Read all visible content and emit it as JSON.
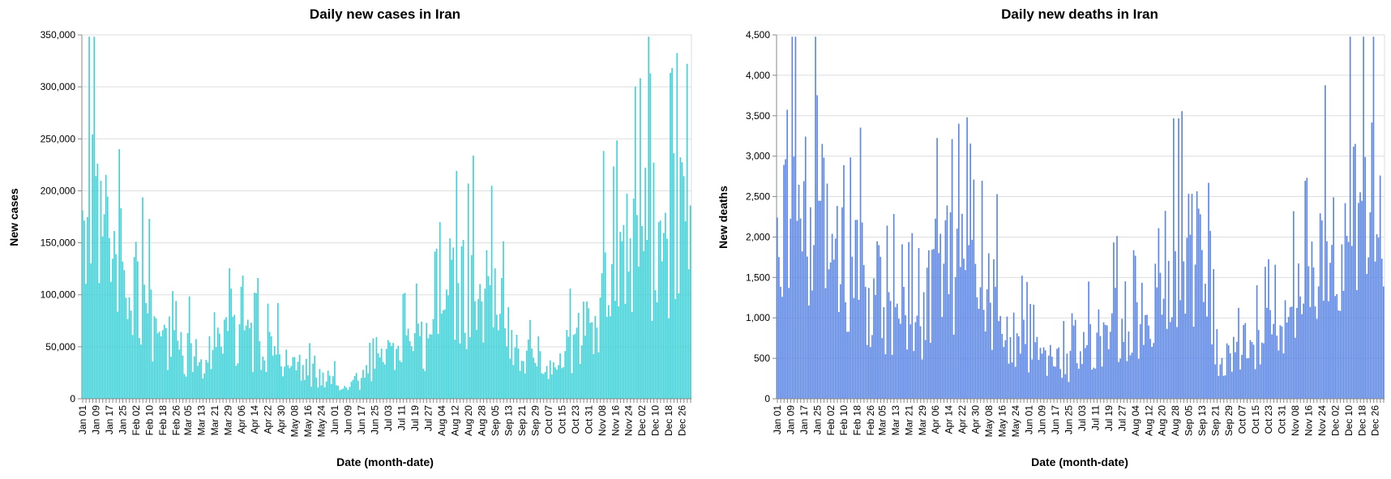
{
  "charts": [
    {
      "title": "Daily new cases in Iran",
      "xlabel": "Date (month-date)",
      "ylabel": "New cases",
      "color": "#3ED2D8",
      "y_ticks": [
        "0",
        "50,000",
        "100,000",
        "150,000",
        "200,000",
        "250,000",
        "300,000",
        "350,000"
      ],
      "x_ticks": [
        "Jan 01",
        "Jan 09",
        "Jan 17",
        "Jan 25",
        "Feb 02",
        "Feb 10",
        "Feb 18",
        "Feb 26",
        "Mar 05",
        "Mar 13",
        "Mar 21",
        "Mar 29",
        "Apr 06",
        "Apr 14",
        "Apr 22",
        "Apr 30",
        "May 08",
        "May 16",
        "May 24",
        "Jun 01",
        "Jun 09",
        "Jun 17",
        "Jun 25",
        "Jul 03",
        "Jul 11",
        "Jul 19",
        "Jul 27",
        "Aug 04",
        "Aug 12",
        "Aug 20",
        "Aug 28",
        "Sep 05",
        "Sep 13",
        "Sep 21",
        "Sep 29",
        "Oct 07",
        "Oct 15",
        "Oct 23",
        "Oct 31",
        "Nov 08",
        "Nov 16",
        "Nov 24",
        "Dec 02",
        "Dec 10",
        "Dec 18",
        "Dec 26"
      ]
    },
    {
      "title": "Daily new deaths in Iran",
      "xlabel": "Date (month-date)",
      "ylabel": "New deaths",
      "color": "#5B86E5",
      "y_ticks": [
        "0",
        "500",
        "1,000",
        "1,500",
        "2,000",
        "2,500",
        "3,000",
        "3,500",
        "4,000",
        "4,500"
      ],
      "x_ticks": [
        "Jan 01",
        "Jan 09",
        "Jan 17",
        "Jan 25",
        "Feb 02",
        "Feb 10",
        "Feb 18",
        "Feb 26",
        "Mar 05",
        "Mar 13",
        "Mar 21",
        "Mar 29",
        "Apr 06",
        "Apr 14",
        "Apr 22",
        "Apr 30",
        "May 08",
        "May 16",
        "May 24",
        "Jun 01",
        "Jun 09",
        "Jun 17",
        "Jun 25",
        "Jul 03",
        "Jul 11",
        "Jul 19",
        "Jul 27",
        "Aug 04",
        "Aug 12",
        "Aug 20",
        "Aug 28",
        "Sep 05",
        "Sep 13",
        "Sep 21",
        "Sep 29",
        "Oct 07",
        "Oct 15",
        "Oct 23",
        "Oct 31",
        "Nov 08",
        "Nov 16",
        "Nov 24",
        "Dec 02",
        "Dec 10",
        "Dec 18",
        "Dec 26"
      ]
    }
  ],
  "chart_data": [
    {
      "type": "bar",
      "title": "Daily new cases in Iran",
      "xlabel": "Date (month-date)",
      "ylabel": "New cases",
      "ylim": [
        0,
        350000
      ],
      "grid": true,
      "x_start": "Jan 01",
      "x_interval_days": 8,
      "anchors": [
        [
          "Jan 01",
          165000
        ],
        [
          "Jan 05",
          250000
        ],
        [
          "Jan 09",
          290000
        ],
        [
          "Jan 13",
          230000
        ],
        [
          "Jan 17",
          230000
        ],
        [
          "Jan 21",
          160000
        ],
        [
          "Jan 25",
          180000
        ],
        [
          "Jan 29",
          150000
        ],
        [
          "Feb 02",
          140000
        ],
        [
          "Feb 06",
          115000
        ],
        [
          "Feb 10",
          100000
        ],
        [
          "Feb 14",
          80000
        ],
        [
          "Feb 18",
          65000
        ],
        [
          "Feb 22",
          70000
        ],
        [
          "Feb 26",
          60000
        ],
        [
          "Mar 01",
          62000
        ],
        [
          "Mar 05",
          60000
        ],
        [
          "Mar 13",
          55000
        ],
        [
          "Mar 21",
          57000
        ],
        [
          "Mar 29",
          72000
        ],
        [
          "Apr 06",
          75000
        ],
        [
          "Apr 14",
          72000
        ],
        [
          "Apr 22",
          62000
        ],
        [
          "Apr 30",
          52000
        ],
        [
          "May 08",
          40000
        ],
        [
          "May 16",
          33000
        ],
        [
          "May 24",
          26000
        ],
        [
          "Jun 01",
          22000
        ],
        [
          "Jun 09",
          20000
        ],
        [
          "Jun 17",
          25000
        ],
        [
          "Jun 25",
          38000
        ],
        [
          "Jul 03",
          50000
        ],
        [
          "Jul 11",
          58000
        ],
        [
          "Jul 19",
          65000
        ],
        [
          "Jul 27",
          68000
        ],
        [
          "Aug 04",
          120000
        ],
        [
          "Aug 12",
          150000
        ],
        [
          "Aug 20",
          130000
        ],
        [
          "Aug 28",
          140000
        ],
        [
          "Sep 05",
          120000
        ],
        [
          "Sep 13",
          100000
        ],
        [
          "Sep 21",
          65000
        ],
        [
          "Sep 29",
          40000
        ],
        [
          "Oct 07",
          45000
        ],
        [
          "Oct 15",
          55000
        ],
        [
          "Oct 23",
          70000
        ],
        [
          "Oct 31",
          100000
        ],
        [
          "Nov 08",
          135000
        ],
        [
          "Nov 16",
          160000
        ],
        [
          "Nov 24",
          190000
        ],
        [
          "Dec 02",
          210000
        ],
        [
          "Dec 10",
          215000
        ],
        [
          "Dec 18",
          220000
        ],
        [
          "Dec 26",
          205000
        ],
        [
          "Dec 31",
          215000
        ]
      ]
    },
    {
      "type": "bar",
      "title": "Daily new deaths in Iran",
      "xlabel": "Date (month-date)",
      "ylabel": "New deaths",
      "ylim": [
        0,
        4500
      ],
      "grid": true,
      "x_start": "Jan 01",
      "x_interval_days": 8,
      "anchors": [
        [
          "Jan 01",
          2000
        ],
        [
          "Jan 05",
          3300
        ],
        [
          "Jan 09",
          3900
        ],
        [
          "Jan 13",
          3600
        ],
        [
          "Jan 17",
          3400
        ],
        [
          "Jan 21",
          3000
        ],
        [
          "Jan 25",
          3700
        ],
        [
          "Jan 29",
          3000
        ],
        [
          "Feb 02",
          3200
        ],
        [
          "Feb 06",
          2500
        ],
        [
          "Feb 10",
          2700
        ],
        [
          "Feb 14",
          1800
        ],
        [
          "Feb 18",
          2200
        ],
        [
          "Feb 22",
          2000
        ],
        [
          "Feb 26",
          1700
        ],
        [
          "Mar 01",
          1900
        ],
        [
          "Mar 05",
          1600
        ],
        [
          "Mar 13",
          1300
        ],
        [
          "Mar 21",
          1200
        ],
        [
          "Mar 29",
          1300
        ],
        [
          "Apr 06",
          2100
        ],
        [
          "Apr 14",
          2200
        ],
        [
          "Apr 22",
          2100
        ],
        [
          "Apr 30",
          1900
        ],
        [
          "May 08",
          1600
        ],
        [
          "May 16",
          1400
        ],
        [
          "May 24",
          1000
        ],
        [
          "Jun 01",
          850
        ],
        [
          "Jun 09",
          700
        ],
        [
          "Jun 17",
          650
        ],
        [
          "Jun 25",
          550
        ],
        [
          "Jul 03",
          800
        ],
        [
          "Jul 11",
          1000
        ],
        [
          "Jul 19",
          1150
        ],
        [
          "Jul 27",
          1300
        ],
        [
          "Aug 04",
          1200
        ],
        [
          "Aug 12",
          1500
        ],
        [
          "Aug 20",
          2000
        ],
        [
          "Aug 28",
          2200
        ],
        [
          "Sep 05",
          2400
        ],
        [
          "Sep 13",
          2500
        ],
        [
          "Sep 21",
          800
        ],
        [
          "Sep 29",
          650
        ],
        [
          "Oct 07",
          800
        ],
        [
          "Oct 15",
          900
        ],
        [
          "Oct 23",
          1000
        ],
        [
          "Oct 31",
          1100
        ],
        [
          "Nov 08",
          1400
        ],
        [
          "Nov 16",
          1700
        ],
        [
          "Nov 24",
          2200
        ],
        [
          "Dec 02",
          2700
        ],
        [
          "Dec 10",
          3100
        ],
        [
          "Dec 18",
          3300
        ],
        [
          "Dec 26",
          3200
        ],
        [
          "Dec 31",
          3500
        ]
      ]
    }
  ]
}
